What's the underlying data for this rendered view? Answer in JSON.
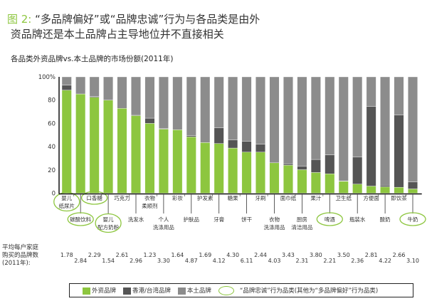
{
  "figure_label": "图 2:",
  "title_line1": "“多品牌偏好”或“品牌忠诚”行为与各品类是由外",
  "title_line2": "资品牌还是本土品牌占主导地位并不直接相关",
  "colors": {
    "foreign": "#8dc63f",
    "hk_tw": "#555555",
    "local": "#8c8c8c",
    "loyalty_ring": "#8dc63f"
  },
  "chart_data": {
    "type": "bar",
    "stacked": true,
    "title": "各品类外资品牌vs.本土品牌的市场份额(2011年)",
    "ylim": [
      0,
      100
    ],
    "yticks": [
      "0",
      "20",
      "40",
      "60",
      "80",
      "100%"
    ],
    "categories": [
      "婴儿纸尿片",
      "碳酸饮料",
      "口香糖",
      "婴儿配方奶粉",
      "巧克力",
      "洗发水",
      "衣物柔顺剂",
      "个人洗涤用品",
      "彩妆",
      "护肤品",
      "护发素",
      "牙膏",
      "糖果",
      "饼干",
      "牙刷",
      "衣物洗涤用品",
      "面巾纸",
      "厨房清洁用品",
      "果汁",
      "啤酒",
      "卫生纸",
      "瓶装水",
      "方便面",
      "酸奶",
      "即饮茶",
      "牛奶"
    ],
    "series": [
      {
        "name": "外资品牌",
        "values": [
          88.6,
          85.3,
          82.4,
          80,
          72.9,
          66.7,
          60,
          55.1,
          54.5,
          48.4,
          43.5,
          42.7,
          38.8,
          35.3,
          35.3,
          26.1,
          24.1,
          20.2,
          17.8,
          16.7,
          10.2,
          7.8,
          6.1,
          5.5,
          5.1,
          3.7
        ]
      },
      {
        "name": "香港/台湾品牌",
        "values": [
          4.3,
          0,
          0.6,
          0,
          0,
          0.8,
          4.5,
          0.4,
          0,
          1,
          0,
          13.4,
          6.9,
          9.4,
          6.9,
          0,
          1.2,
          3.1,
          11.2,
          16.3,
          0.4,
          23.2,
          68.4,
          1.4,
          62.2,
          5.9
        ]
      },
      {
        "name": "本土品牌",
        "values": [
          7.1,
          14.7,
          17,
          20,
          27.1,
          32.5,
          35.5,
          44.5,
          45.5,
          50.6,
          56.5,
          43.9,
          54.3,
          55.3,
          57.8,
          73.9,
          74.7,
          76.7,
          71,
          67,
          89.4,
          69,
          25.5,
          93.1,
          32.7,
          90.4
        ]
      }
    ],
    "loyalty_categories": [
      "婴儿纸尿片",
      "碳酸饮料",
      "口香糖",
      "婴儿配方奶粉",
      "啤酒",
      "牛奶"
    ],
    "brands_per_household_label": [
      "平均每户家庭",
      "购买的品牌数",
      "(2011年):"
    ],
    "brands_per_household": [
      "1.78",
      "2.84",
      "2.29",
      "1.54",
      "2.61",
      "2.96",
      "1.23",
      "3.30",
      "1.64",
      "4.87",
      "1.69",
      "4.12",
      "4.30",
      "6.11",
      "2.44",
      "4.03",
      "3.43",
      "2.31",
      "3.80",
      "2.21",
      "3.50",
      "2.36",
      "2.81",
      "4.22",
      "2.66",
      "3.10"
    ],
    "legend": [
      "外资品牌",
      "香港/台湾品牌",
      "本土品牌",
      "“品牌忠诚”行为品类(其他为“多品牌偏好”行为品类)"
    ],
    "legend_position": "bottom"
  }
}
